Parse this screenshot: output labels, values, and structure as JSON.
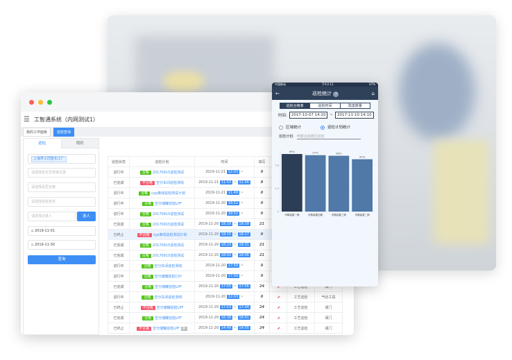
{
  "colors": {
    "primary": "#3d8ff5",
    "pass": "#52c41a",
    "fail": "#f5576c",
    "mobile_nav": "#2f4059",
    "bar_first": "#2c3e56",
    "bar_other": "#5078a8"
  },
  "desktop": {
    "app_title": "工智通系统（内网测试1）",
    "menu_icon": "hamburger-icon",
    "tabs": [
      {
        "label": "我的工作面板"
      },
      {
        "label": "巡检查询"
      }
    ],
    "left_tabs": [
      "巡检",
      "随机"
    ],
    "filters": {
      "factory_chip": "上海界工同智化工厂",
      "no_record": "请选择有无异常或记录",
      "qualified": "请选择是否合格",
      "status": "请选择巡检状态",
      "recorder": "请选择记录人",
      "select_button": "选人",
      "date_from": "2019-11-01",
      "date_to": "2019-11-30",
      "query_button": "查询"
    },
    "columns": [
      "巡检状态",
      "巡检计划",
      "时间",
      "填写",
      "",
      "",
      ""
    ],
    "rows": [
      {
        "status": "进行中",
        "result": "合格",
        "plan": "20170915巡检测试",
        "date": "2019-11-21",
        "start": "12:03",
        "end": "",
        "fill": "0"
      },
      {
        "status": "已完成",
        "result": "不合格",
        "plan": "空分车间巡检测线",
        "date": "2019-11-21",
        "start": "11:53",
        "end": "11:56",
        "fill": "8"
      },
      {
        "status": "进行中",
        "result": "合格",
        "plan": "cyp离线巡检测试计划",
        "date": "2019-11-21",
        "start": "11:49",
        "end": "",
        "fill": "0"
      },
      {
        "status": "进行中",
        "result": "合格",
        "plan": "空分储罐巡检LPF",
        "date": "2019-11-20",
        "start": "18:52",
        "end": "",
        "fill": "0"
      },
      {
        "status": "进行中",
        "result": "合格",
        "plan": "20170915巡检测试",
        "date": "2019-11-20",
        "start": "18:52",
        "end": "",
        "fill": "0"
      },
      {
        "status": "已完成",
        "result": "合格",
        "plan": "20170915巡检测试",
        "date": "2019-11-20",
        "start": "18:18",
        "end": "18:39",
        "fill": "21"
      },
      {
        "status": "已终止",
        "result": "不合格",
        "plan": "cyp离线巡检测试计划",
        "date": "2019-11-20",
        "start": "18:15",
        "end": "18:17",
        "fill": "0",
        "highlight": true
      },
      {
        "status": "已完成",
        "result": "合格",
        "plan": "20170915巡检测试",
        "date": "2019-11-20",
        "start": "18:10",
        "end": "18:31",
        "fill": "21"
      },
      {
        "status": "已完成",
        "result": "合格",
        "plan": "20170915巡检测试",
        "date": "2019-11-20",
        "start": "18:02",
        "end": "18:06",
        "fill": "21"
      },
      {
        "status": "进行中",
        "result": "合格",
        "plan": "空分车间巡检测线",
        "date": "2019-11-20",
        "start": "17:59",
        "end": "",
        "fill": "0"
      },
      {
        "status": "进行中",
        "result": "合格",
        "plan": "空分储罐巡检CSY",
        "date": "2019-11-20",
        "start": "17:59",
        "end": "",
        "fill": "0"
      },
      {
        "status": "已完成",
        "result": "合格",
        "plan": "空分储罐巡检LPF",
        "date": "2019-11-20",
        "start": "17:55",
        "end": "17:56",
        "fill": "24",
        "type": "工艺巡检",
        "area": "阀门"
      },
      {
        "status": "进行中",
        "result": "合格",
        "plan": "空分车间巡检测线",
        "date": "2019-11-20",
        "start": "12:03",
        "end": "",
        "fill": "0",
        "type": "工艺巡检",
        "area": "气化工段"
      },
      {
        "status": "已终止",
        "result": "不合格",
        "plan": "空分储罐巡检LPF",
        "date": "2019-11-20",
        "start": "17:03",
        "end": "17:04",
        "fill": "24",
        "type": "工艺巡检",
        "area": "阀门"
      },
      {
        "status": "已完成",
        "result": "合格",
        "plan": "空分储罐巡检LPF",
        "date": "2019-11-20",
        "start": "16:38",
        "end": "16:41",
        "fill": "24",
        "type": "工艺巡检",
        "area": "阀门"
      },
      {
        "status": "已终止",
        "result": "不合格",
        "plan": "空分储罐巡检LPF",
        "date": "2019-11-20",
        "start": "14:48",
        "end": "14:55",
        "fill": "24",
        "type": "工艺巡检",
        "area": "阀门",
        "extra_tag": "补"
      }
    ]
  },
  "mobile": {
    "status_bar": {
      "carrier": "中国移动",
      "time": "下午2:11",
      "battery": "67%"
    },
    "title": "巡检统计",
    "segments": [
      "巡检合格率",
      "巡检时间",
      "隐患数量"
    ],
    "time_label": "时间:",
    "time_from": "2017-10-07 14:10",
    "time_to": "2017-11-10 14:10",
    "radio_area": "区域统计",
    "radio_plan": "巡检计划统计",
    "plan_label": "巡检计划:",
    "plan_value": "甲醇合成岗位巡检"
  },
  "chart_data": {
    "type": "bar",
    "categories": [
      "甲醇装置一期",
      "甲醇装置四期",
      "甲醇装置三期",
      "甲醇装置二期"
    ],
    "values": [
      0.99,
      0.97,
      0.96,
      0.9
    ],
    "data_labels": [
      "99%",
      "97%",
      "96%",
      "90%"
    ],
    "yticks": [
      "0",
      "0.4",
      "0.8"
    ],
    "ylim": [
      0,
      1.05
    ]
  }
}
